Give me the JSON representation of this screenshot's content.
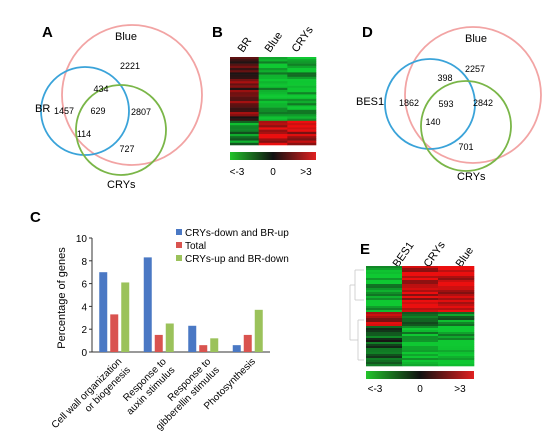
{
  "panels": {
    "A": {
      "letter": "A",
      "sets": {
        "blue": "Blue",
        "br": "BR",
        "crys": "CRYs"
      },
      "counts": {
        "blue_only": "2221",
        "br_blue": "434",
        "br_only": "1457",
        "all": "629",
        "blue_crys": "2807",
        "br_crys": "114",
        "crys_only": "727"
      },
      "colors": {
        "blue": "#f2a4a4",
        "br": "#3aa3d9",
        "crys": "#7ab648"
      }
    },
    "B": {
      "letter": "B",
      "columns": [
        "BR",
        "Blue",
        "CRYs"
      ],
      "scale": {
        "low": "<-3",
        "mid": "0",
        "high": ">3"
      }
    },
    "C": {
      "letter": "C",
      "legend": [
        "CRYs-down and BR-up",
        "Total",
        "CRYs-up and BR-down"
      ]
    },
    "D": {
      "letter": "D",
      "sets": {
        "blue": "Blue",
        "bes1": "BES1",
        "crys": "CRYs"
      },
      "counts": {
        "blue_only": "2257",
        "bes1_blue": "398",
        "bes1_only": "1862",
        "all": "593",
        "blue_crys": "2842",
        "bes1_crys": "140",
        "crys_only": "701"
      },
      "colors": {
        "blue": "#f2a4a4",
        "bes1": "#3aa3d9",
        "crys": "#7ab648"
      }
    },
    "E": {
      "letter": "E",
      "columns": [
        "BES1",
        "CRYs",
        "Blue"
      ],
      "scale": {
        "low": "<-3",
        "mid": "0",
        "high": ">3"
      }
    }
  },
  "chart_data": {
    "type": "bar",
    "categories": [
      "Cell wall organization or biogenesis",
      "Response to auxin stimulus",
      "Response to gibberellin stimulus",
      "Photosynthesis"
    ],
    "series": [
      {
        "name": "CRYs-down and BR-up",
        "values": [
          7.0,
          8.3,
          2.3,
          0.6
        ],
        "color": "#4a78c4"
      },
      {
        "name": "Total",
        "values": [
          3.3,
          1.5,
          0.6,
          1.5
        ],
        "color": "#d9534f"
      },
      {
        "name": "CRYs-up and BR-down",
        "values": [
          6.1,
          2.5,
          1.2,
          3.7
        ],
        "color": "#9bc25b"
      }
    ],
    "xlabel": "",
    "ylabel": "Percentage of genes",
    "ylim": [
      0,
      10
    ],
    "yticks": [
      "0",
      "2",
      "4",
      "6",
      "8",
      "10"
    ],
    "xtick_lines": [
      [
        "Cell wall organization",
        "or biogenesis"
      ],
      [
        "Response to",
        "auxin stimulus"
      ],
      [
        "Response to",
        "gibberellin stimulus"
      ],
      [
        "Photosynthesis"
      ]
    ],
    "legend_position": "top-right"
  }
}
